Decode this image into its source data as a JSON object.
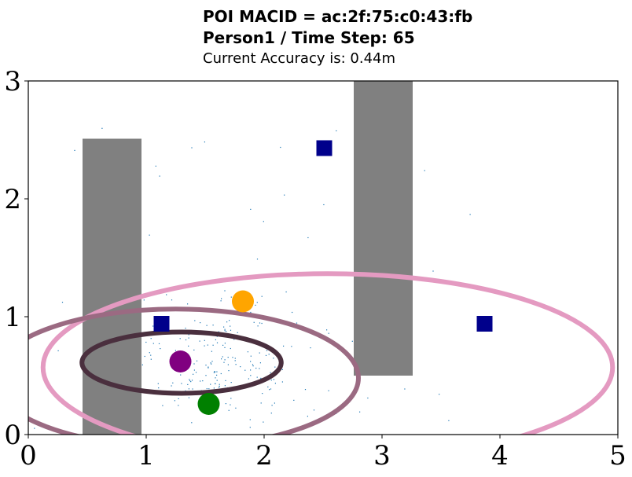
{
  "chart_data": {
    "type": "scatter",
    "title_lines": [
      "POI MACID = ac:2f:75:c0:43:fb",
      "Person1 / Time Step: 65",
      "Current Accuracy is: 0.44m"
    ],
    "xlabel": "",
    "ylabel": "",
    "xlim": [
      0,
      5
    ],
    "ylim": [
      0,
      3
    ],
    "xticks": [
      "0",
      "1",
      "2",
      "3",
      "4",
      "5"
    ],
    "yticks": [
      "0",
      "1",
      "2",
      "3"
    ],
    "grid": false,
    "obstacles": [
      {
        "x0": 0.46,
        "x1": 0.96,
        "y0": 0,
        "y1": 2.51,
        "color": "#808080"
      },
      {
        "x0": 2.76,
        "x1": 3.26,
        "y0": 0.5,
        "y1": 3.0,
        "color": "#808080"
      }
    ],
    "anchors": {
      "color": "#00008b",
      "points": [
        [
          1.13,
          0.94
        ],
        [
          2.51,
          2.43
        ],
        [
          3.87,
          0.94
        ]
      ]
    },
    "ellipses": [
      {
        "cx": 2.54,
        "cy": 0.57,
        "rx": 4.83,
        "ry": 1.59,
        "color": "#e49ac1"
      },
      {
        "cx": 1.25,
        "cy": 0.48,
        "rx": 3.1,
        "ry": 1.17,
        "color": "#9b6a82"
      },
      {
        "cx": 1.3,
        "cy": 0.61,
        "rx": 1.69,
        "ry": 0.52,
        "color": "#4a2f3e"
      }
    ],
    "markers": [
      {
        "x": 1.82,
        "y": 1.13,
        "color": "#ffa500"
      },
      {
        "x": 1.29,
        "y": 0.62,
        "color": "#800080"
      },
      {
        "x": 1.53,
        "y": 0.26,
        "color": "#008000"
      }
    ],
    "particle_color": "#1f77b4"
  }
}
